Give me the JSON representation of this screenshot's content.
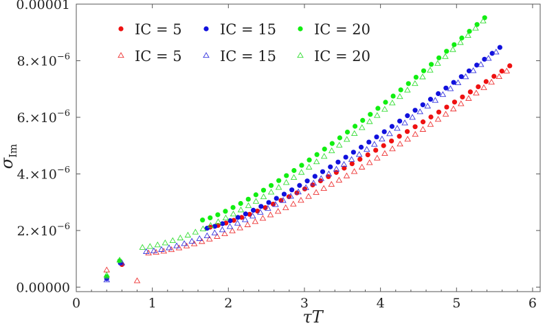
{
  "chart_data": {
    "type": "scatter",
    "title": "",
    "xlabel": "τT",
    "ylabel": "σ",
    "ylabel_sub": "Im",
    "xlim": [
      0,
      6.1
    ],
    "ylim": [
      -1.6e-07,
      1e-05
    ],
    "x_ticks": [
      {
        "value": 0,
        "label": "0"
      },
      {
        "value": 1,
        "label": "1"
      },
      {
        "value": 2,
        "label": "2"
      },
      {
        "value": 3,
        "label": "3"
      },
      {
        "value": 4,
        "label": "4"
      },
      {
        "value": 5,
        "label": "5"
      },
      {
        "value": 6,
        "label": "6"
      }
    ],
    "y_ticks": [
      {
        "value": 0,
        "mant": "0.00000",
        "exp": ""
      },
      {
        "value": 2e-06,
        "mant": "2.×10",
        "exp": "−6"
      },
      {
        "value": 4e-06,
        "mant": "4.×10",
        "exp": "−6"
      },
      {
        "value": 6e-06,
        "mant": "6.×10",
        "exp": "−6"
      },
      {
        "value": 8e-06,
        "mant": "8.×10",
        "exp": "−6"
      },
      {
        "value": 1e-05,
        "mant": "0.00001",
        "exp": ""
      }
    ],
    "legend_position": "top-left",
    "legend": [
      {
        "label": "IC = 5",
        "marker": "circle",
        "color": "#ee1111"
      },
      {
        "label": "IC = 15",
        "marker": "circle",
        "color": "#1111dd"
      },
      {
        "label": "IC = 20",
        "marker": "circle",
        "color": "#11ee11"
      },
      {
        "label": "IC = 5",
        "marker": "triangle",
        "color": "#ee3333"
      },
      {
        "label": "IC = 15",
        "marker": "triangle",
        "color": "#3333dd"
      },
      {
        "label": "IC = 20",
        "marker": "triangle",
        "color": "#33dd33"
      }
    ],
    "series": [
      {
        "label": "IC = 5",
        "marker": "circle",
        "color": "#ee1111",
        "early": [
          [
            0.4,
            3.3e-07
          ],
          [
            0.6,
            8e-07
          ]
        ],
        "main": {
          "x0": 1.76,
          "x1": 5.7,
          "y0": 2.12e-06,
          "y1": 7.82e-06,
          "n": 39,
          "curve": 1.25
        }
      },
      {
        "label": "IC = 15",
        "marker": "circle",
        "color": "#1111dd",
        "early": [
          [
            0.4,
            3e-07
          ],
          [
            0.58,
            8.5e-07
          ]
        ],
        "main": {
          "x0": 1.72,
          "x1": 5.57,
          "y0": 2.08e-06,
          "y1": 8.47e-06,
          "n": 39,
          "curve": 1.25
        }
      },
      {
        "label": "IC = 20",
        "marker": "circle",
        "color": "#11ee11",
        "early": [
          [
            0.4,
            3.7e-07
          ],
          [
            0.57,
            9.3e-07
          ]
        ],
        "main": {
          "x0": 1.66,
          "x1": 5.37,
          "y0": 2.37e-06,
          "y1": 9.52e-06,
          "n": 38,
          "curve": 1.25
        }
      },
      {
        "label": "IC = 5",
        "marker": "triangle",
        "color": "#ee3333",
        "early": [
          [
            0.4,
            6e-07
          ],
          [
            0.8,
            2.2e-07
          ]
        ],
        "main": {
          "x0": 0.95,
          "x1": 5.66,
          "y0": 1.2e-06,
          "y1": 7.63e-06,
          "n": 48,
          "curve": 1.45
        }
      },
      {
        "label": "IC = 15",
        "marker": "triangle",
        "color": "#3333dd",
        "early": [
          [
            0.4,
            2.5e-07
          ],
          [
            0.6,
            8.5e-07
          ]
        ],
        "main": {
          "x0": 0.92,
          "x1": 5.52,
          "y0": 1.25e-06,
          "y1": 8.3e-06,
          "n": 47,
          "curve": 1.45
        }
      },
      {
        "label": "IC = 20",
        "marker": "triangle",
        "color": "#33dd33",
        "early": [
          [
            0.4,
            4.2e-07
          ],
          [
            0.57,
            9.5e-07
          ]
        ],
        "main": {
          "x0": 0.87,
          "x1": 5.35,
          "y0": 1.4e-06,
          "y1": 9.4e-06,
          "n": 46,
          "curve": 1.45
        }
      }
    ]
  }
}
